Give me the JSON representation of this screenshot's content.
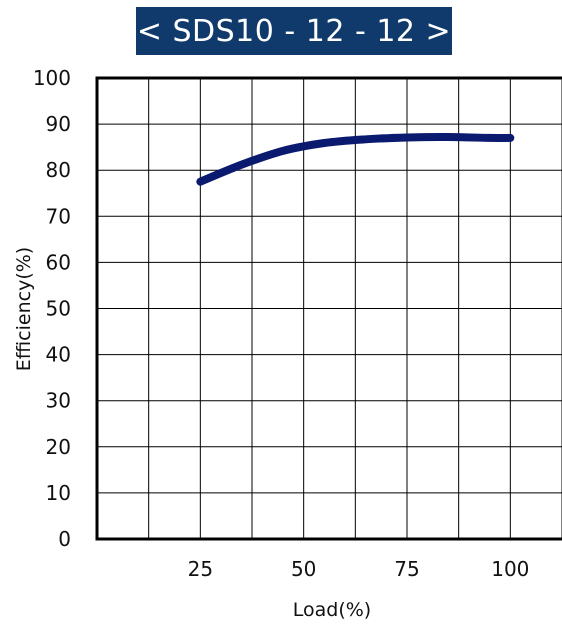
{
  "chart_data": {
    "type": "line",
    "title": "< SDS10 - 12 - 12 >",
    "xlabel": "Load(%)",
    "ylabel": "Efficiency(%)",
    "x_ticks": [
      25,
      50,
      75,
      100
    ],
    "y_ticks": [
      0,
      10,
      20,
      30,
      40,
      50,
      60,
      70,
      80,
      90,
      100
    ],
    "xlim": [
      0,
      112.5
    ],
    "ylim": [
      0,
      100
    ],
    "grid": true,
    "series": [
      {
        "color": "#0a1a6e",
        "x": [
          25,
          35,
          45,
          55,
          65,
          75,
          85,
          95,
          100
        ],
        "y": [
          77.5,
          81.2,
          84.2,
          85.9,
          86.7,
          87.1,
          87.2,
          87.0,
          87.0
        ]
      }
    ]
  }
}
